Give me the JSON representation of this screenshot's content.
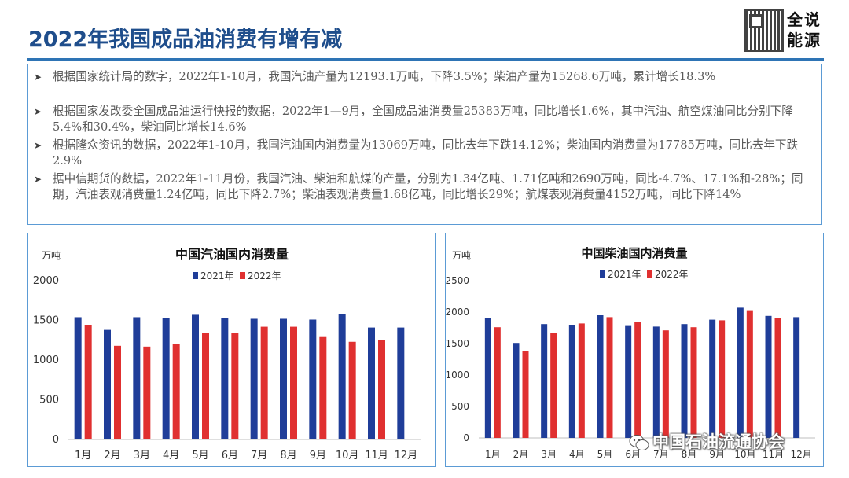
{
  "slide": {
    "title": "2022年我国成品油消费有增有减",
    "logo_text": "全说能源"
  },
  "bullets": [
    "根据国家统计局的数字，2022年1-10月，我国汽油产量为12193.1万吨，下降3.5%；柴油产量为15268.6万吨，累计增长18.3%",
    "根据国家发改委全国成品油运行快报的数据，2022年1—9月，全国成品油消费量25383万吨，同比增长1.6%，其中汽油、航空煤油同比分别下降5.4%和30.4%，柴油同比增长14.6%",
    "根据隆众资讯的数据，2022年1-10月，我国汽油国内消费量为13069万吨，同比去年下跌14.12%；柴油国内消费量为17785万吨，同比去年下跌2.9%",
    "据中信期货的数据，2022年1-11月份，我国汽油、柴油和航煤的产量，分别为1.34亿吨、1.71亿吨和2690万吨，同比-4.7%、17.1%和-28%；同期，汽油表观消费量1.24亿吨，同比下降2.7%；柴油表观消费量1.68亿吨，同比增长29%；航煤表观消费量4152万吨，同比下降14%"
  ],
  "watermark": "中国石油流通协会",
  "colors": {
    "s2021": "#1f3d99",
    "s2022": "#e03030",
    "title": "#1f4e8c",
    "rule": "#2e74b5"
  },
  "chart_data": [
    {
      "type": "bar",
      "title": "中国汽油国内消费量",
      "ylabel": "万吨",
      "ylim": [
        0,
        2000
      ],
      "yticks": [
        0,
        500,
        1000,
        1500,
        2000
      ],
      "categories": [
        "1月",
        "2月",
        "3月",
        "4月",
        "5月",
        "6月",
        "7月",
        "8月",
        "9月",
        "10月",
        "11月",
        "12月"
      ],
      "series": [
        {
          "name": "2021年",
          "color": "#1f3d99",
          "values": [
            1540,
            1380,
            1540,
            1530,
            1570,
            1530,
            1520,
            1520,
            1510,
            1580,
            1410,
            1410
          ]
        },
        {
          "name": "2022年",
          "color": "#e03030",
          "values": [
            1440,
            1180,
            1170,
            1200,
            1340,
            1340,
            1420,
            1420,
            1290,
            1230,
            1250,
            null
          ]
        }
      ],
      "legend": "top",
      "grid": false
    },
    {
      "type": "bar",
      "title": "中国柴油国内消费量",
      "ylabel": "万吨",
      "ylim": [
        0,
        2500
      ],
      "yticks": [
        0,
        500,
        1000,
        1500,
        2000,
        2500
      ],
      "categories": [
        "1月",
        "2月",
        "3月",
        "4月",
        "5月",
        "6月",
        "7月",
        "8月",
        "9月",
        "10月",
        "11月",
        "12月"
      ],
      "series": [
        {
          "name": "2021年",
          "color": "#1f3d99",
          "values": [
            1900,
            1510,
            1810,
            1790,
            1950,
            1780,
            1770,
            1810,
            1880,
            2070,
            1940,
            1920
          ]
        },
        {
          "name": "2022年",
          "color": "#e03030",
          "values": [
            1760,
            1380,
            1670,
            1820,
            1920,
            1840,
            1710,
            1760,
            1870,
            2030,
            1910,
            null
          ]
        }
      ],
      "legend": "top",
      "grid": false
    }
  ]
}
